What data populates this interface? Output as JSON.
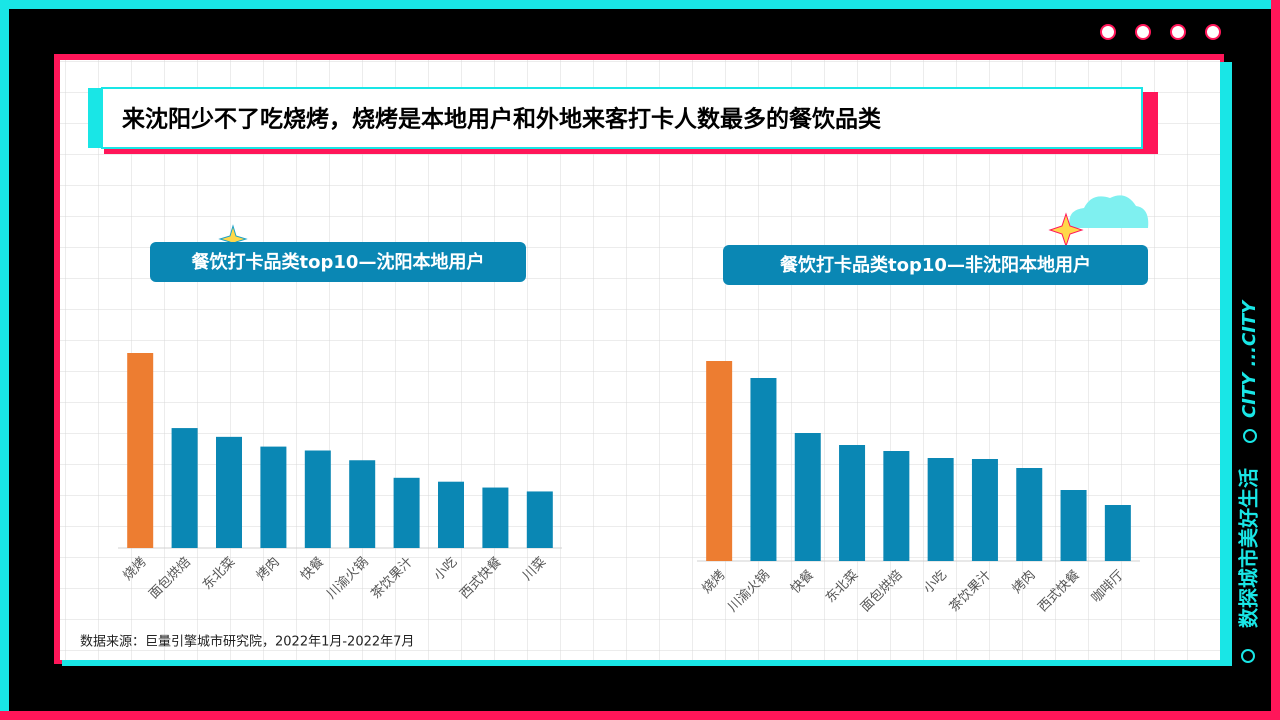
{
  "header": {
    "title": "来沈阳少不了吃烧烤，烧烤是本地用户和外地来客打卡人数最多的餐饮品类"
  },
  "source": "数据来源：巨量引擎城市研究院，2022年1月-2022年7月",
  "side_text": {
    "main": "数探城市美好生活",
    "tag": "CITY ...CITY"
  },
  "chart_data": [
    {
      "type": "bar",
      "title": "餐饮打卡品类top10—沈阳本地用户",
      "categories": [
        "烧烤",
        "面包烘焙",
        "东北菜",
        "烤肉",
        "快餐",
        "川渝火锅",
        "茶饮果汁",
        "小吃",
        "西式快餐",
        "川菜"
      ],
      "values": [
        100,
        61.5,
        57,
        52,
        50,
        45,
        36,
        34,
        31,
        29
      ],
      "colors": [
        "#ed7d31",
        "#0a87b4",
        "#0a87b4",
        "#0a87b4",
        "#0a87b4",
        "#0a87b4",
        "#0a87b4",
        "#0a87b4",
        "#0a87b4",
        "#0a87b4"
      ]
    },
    {
      "type": "bar",
      "title": "餐饮打卡品类top10—非沈阳本地用户",
      "categories": [
        "烧烤",
        "川渝火锅",
        "快餐",
        "东北菜",
        "面包烘焙",
        "小吃",
        "茶饮果汁",
        "烤肉",
        "西式快餐",
        "咖啡厅"
      ],
      "values": [
        100,
        91.5,
        64,
        58,
        55,
        51.5,
        51,
        46.5,
        35.5,
        28
      ],
      "colors": [
        "#ed7d31",
        "#0a87b4",
        "#0a87b4",
        "#0a87b4",
        "#0a87b4",
        "#0a87b4",
        "#0a87b4",
        "#0a87b4",
        "#0a87b4",
        "#0a87b4"
      ]
    }
  ]
}
